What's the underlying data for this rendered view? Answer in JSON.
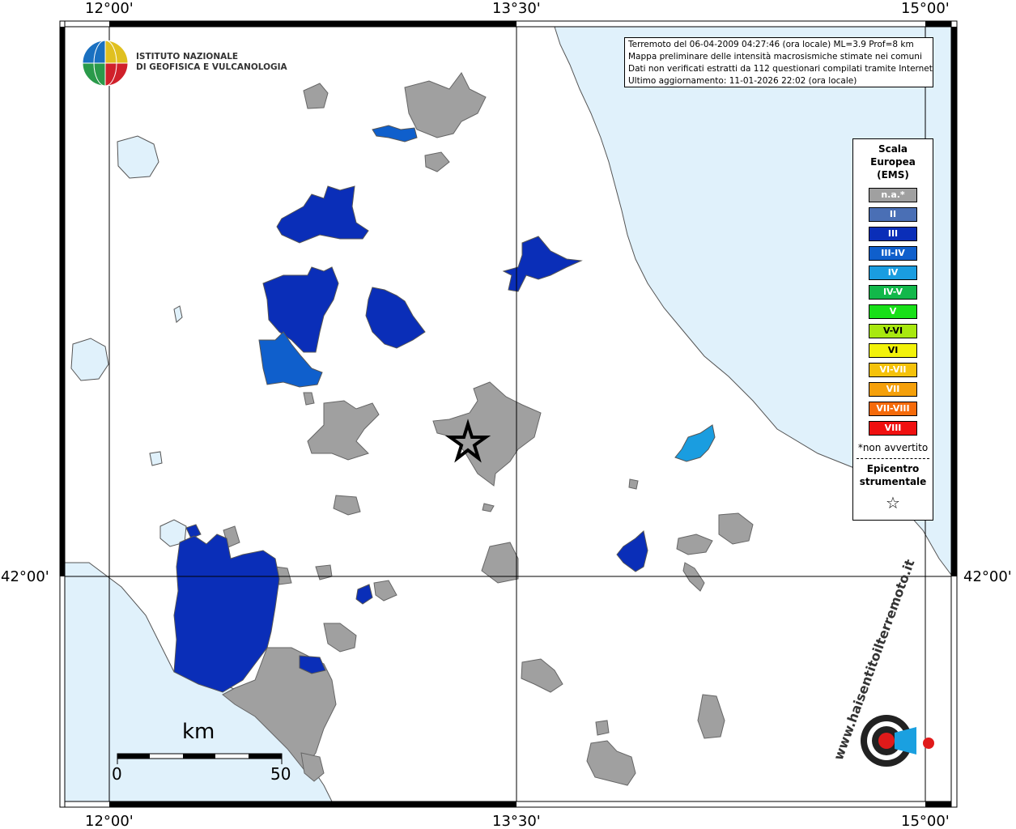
{
  "axes": {
    "top_ticks": [
      "12°00'",
      "13°30'",
      "15°00'"
    ],
    "bottom_ticks": [
      "12°00'",
      "13°30'",
      "15°00'"
    ],
    "left_tick": "42°00'",
    "right_tick": "42°00'"
  },
  "info": {
    "line1": "Terremoto del 06-04-2009 04:27:46 (ora locale) ML=3.9 Prof=8 km",
    "line2": "Mappa preliminare delle intensità macrosismiche stimate nei comuni",
    "line3": "Dati non verificati estratti da 112 questionari compilati tramite Internet.",
    "line4": "Ultimo aggiornamento: 11-01-2026 22:02 (ora locale)"
  },
  "logo": {
    "line1": "ISTITUTO NAZIONALE",
    "line2": "DI GEOFISICA E VULCANOLOGIA",
    "site_text": "www.haisentitoilterremoto.it"
  },
  "legend": {
    "title": "Scala\nEuropea\n(EMS)",
    "title1": "Scala",
    "title2": "Europea",
    "title3": "(EMS)",
    "items": [
      {
        "label": "n.a.*",
        "color": "#a0a0a0"
      },
      {
        "label": "II",
        "color": "#4a6fb5"
      },
      {
        "label": "III",
        "color": "#0a2eb8"
      },
      {
        "label": "III-IV",
        "color": "#0f5fcc"
      },
      {
        "label": "IV",
        "color": "#1a9de0"
      },
      {
        "label": "IV-V",
        "color": "#12b84a"
      },
      {
        "label": "V",
        "color": "#18e018"
      },
      {
        "label": "V-VI",
        "color": "#a8e80f"
      },
      {
        "label": "VI",
        "color": "#f2f20a"
      },
      {
        "label": "VI-VII",
        "color": "#f5c20a"
      },
      {
        "label": "VII",
        "color": "#f5a00a"
      },
      {
        "label": "VII-VIII",
        "color": "#f56a0a"
      },
      {
        "label": "VIII",
        "color": "#f01010"
      }
    ],
    "note": "*non avvertito",
    "epicenter1": "Epicentro",
    "epicenter2": "strumentale",
    "star": "☆"
  },
  "scale": {
    "unit": "km",
    "start": "0",
    "end": "50"
  },
  "colors": {
    "sea": "#e0f1fb",
    "gray": "#a0a0a0",
    "blue3": "#0a2eb8",
    "blue34": "#0f5fcc",
    "blue4": "#1a9de0"
  }
}
